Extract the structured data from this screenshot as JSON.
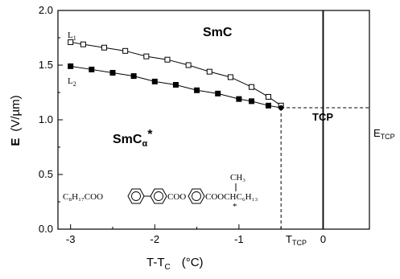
{
  "chart_data": {
    "type": "scatter",
    "xlabel": "T-T",
    "xlabel_sub": "C",
    "xlabel_unit": "(°C)",
    "ylabel": "E",
    "ylabel_unit": "(V/µm)",
    "xlim": [
      -3.15,
      0.55
    ],
    "ylim": [
      0.0,
      2.0
    ],
    "xticks": [
      "-3",
      "-2",
      "-1",
      "0"
    ],
    "xtick_values": [
      -3,
      -2,
      -1,
      0
    ],
    "yticks": [
      "0.0",
      "0.5",
      "1.0",
      "1.5",
      "2.0"
    ],
    "ytick_values": [
      0.0,
      0.5,
      1.0,
      1.5,
      2.0
    ],
    "series": [
      {
        "name": "L1",
        "marker": "open-square",
        "x": [
          -3.0,
          -2.85,
          -2.6,
          -2.35,
          -2.1,
          -1.85,
          -1.6,
          -1.35,
          -1.1,
          -0.85,
          -0.65,
          -0.5
        ],
        "y": [
          1.71,
          1.69,
          1.66,
          1.63,
          1.58,
          1.55,
          1.5,
          1.44,
          1.39,
          1.3,
          1.21,
          1.13
        ]
      },
      {
        "name": "L2",
        "marker": "filled-square",
        "x": [
          -3.0,
          -2.75,
          -2.5,
          -2.25,
          -2.0,
          -1.75,
          -1.5,
          -1.25,
          -1.0,
          -0.85,
          -0.65
        ],
        "y": [
          1.49,
          1.46,
          1.43,
          1.4,
          1.35,
          1.32,
          1.27,
          1.24,
          1.19,
          1.17,
          1.13
        ]
      }
    ],
    "tcp_point": {
      "x": -0.5,
      "y": 1.11
    },
    "annotations": {
      "region_upper": "SmC",
      "region_lower": "SmC",
      "region_lower_sub": "α",
      "region_lower_star": "*",
      "tcp": "TCP",
      "t_tcp": "T",
      "t_tcp_sub": "TCP",
      "e_tcp": "E",
      "e_tcp_sub": "TCP",
      "l1": "L",
      "l1_sub": "1",
      "l2": "L",
      "l2_sub": "2"
    },
    "vertical_line_x": 0,
    "chemical_structure": {
      "left": "C₈H₁₇COO",
      "middle": "COO",
      "right": "COOCHC₆H₁₃",
      "branch": "CH₃",
      "star": "*"
    }
  }
}
